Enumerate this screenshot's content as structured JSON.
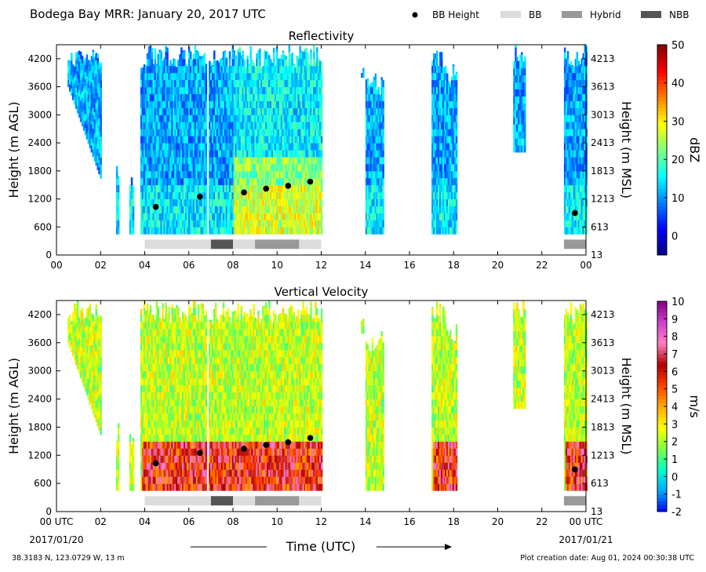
{
  "title": "Bodega Bay MRR:  January 20, 2017 UTC",
  "legend": [
    {
      "label": "BB Height",
      "type": "marker",
      "color": "#000000"
    },
    {
      "label": "BB",
      "type": "patch",
      "color": "#dcdcdc"
    },
    {
      "label": "Hybrid",
      "type": "patch",
      "color": "#999999"
    },
    {
      "label": "NBB",
      "type": "patch",
      "color": "#555555"
    }
  ],
  "footer": {
    "location": "38.3183 N, 123.0729 W, 13 m",
    "created": "Plot creation date: Aug 01, 2024 00:30:38 UTC"
  },
  "xaxis": {
    "label": "Time (UTC)",
    "ticks": [
      "00",
      "02",
      "04",
      "06",
      "08",
      "10",
      "12",
      "14",
      "16",
      "18",
      "20",
      "22",
      "00"
    ],
    "bottom_ticks": [
      "00 UTC",
      "02",
      "04",
      "06",
      "08",
      "10",
      "12",
      "14",
      "16",
      "18",
      "20",
      "22",
      "00 UTC"
    ],
    "start_date": "2017/01/20",
    "end_date": "2017/01/21"
  },
  "chart_data": [
    {
      "type": "heatmap",
      "title": "Reflectivity",
      "ylabel": "Height (m AGL)",
      "ylabel_right": "Height (m MSL)",
      "xlim": [
        0,
        24
      ],
      "ylim": [
        0,
        4500
      ],
      "yticks": [
        0,
        600,
        1200,
        1800,
        2400,
        3000,
        3600,
        4200
      ],
      "yticks_right": [
        "13",
        "613",
        "1213",
        "1813",
        "2413",
        "3013",
        "3613",
        "4213"
      ],
      "colorbar": {
        "label": "dBZ",
        "min": -5,
        "max": 50,
        "ticks": [
          0,
          10,
          20,
          30,
          40,
          50
        ],
        "colors": [
          "#00007f",
          "#0000ff",
          "#007fff",
          "#00ffff",
          "#7fff7f",
          "#ffff00",
          "#ff7f00",
          "#ff0000",
          "#7f0000"
        ]
      },
      "bb_height": {
        "times": [
          4.5,
          6.5,
          8.5,
          9.5,
          10.5,
          11.5,
          23.5
        ],
        "heights": [
          1030,
          1250,
          1340,
          1420,
          1480,
          1570,
          900
        ]
      },
      "bb_type_bars": [
        {
          "start": 4.0,
          "end": 7.0,
          "type": "BB"
        },
        {
          "start": 7.0,
          "end": 8.0,
          "type": "NBB"
        },
        {
          "start": 8.0,
          "end": 9.0,
          "type": "BB"
        },
        {
          "start": 9.0,
          "end": 11.0,
          "type": "Hybrid"
        },
        {
          "start": 11.0,
          "end": 12.0,
          "type": "BB"
        },
        {
          "start": 23.0,
          "end": 24.0,
          "type": "Hybrid"
        }
      ]
    },
    {
      "type": "heatmap",
      "title": "Vertical Velocity",
      "ylabel": "Height (m AGL)",
      "ylabel_right": "Height (m MSL)",
      "xlim": [
        0,
        24
      ],
      "ylim": [
        0,
        4500
      ],
      "yticks": [
        0,
        600,
        1200,
        1800,
        2400,
        3000,
        3600,
        4200
      ],
      "yticks_right": [
        "13",
        "613",
        "1213",
        "1813",
        "2413",
        "3013",
        "3613",
        "4213"
      ],
      "colorbar": {
        "label": "m/s",
        "min": -2,
        "max": 10,
        "ticks": [
          -2,
          -1,
          0,
          1,
          2,
          3,
          4,
          5,
          6,
          7,
          8,
          9,
          10
        ],
        "colors": [
          "#0000ff",
          "#00aaff",
          "#00ffcc",
          "#80ff40",
          "#ffff00",
          "#ffaa00",
          "#ff4000",
          "#b00000",
          "#ff80c0",
          "#d040d0",
          "#800080"
        ]
      },
      "bb_height": {
        "times": [
          4.5,
          6.5,
          8.5,
          9.5,
          10.5,
          11.5,
          23.5
        ],
        "heights": [
          1030,
          1250,
          1340,
          1420,
          1480,
          1570,
          900
        ]
      },
      "bb_type_bars": [
        {
          "start": 4.0,
          "end": 7.0,
          "type": "BB"
        },
        {
          "start": 7.0,
          "end": 8.0,
          "type": "NBB"
        },
        {
          "start": 8.0,
          "end": 9.0,
          "type": "BB"
        },
        {
          "start": 9.0,
          "end": 11.0,
          "type": "Hybrid"
        },
        {
          "start": 11.0,
          "end": 12.0,
          "type": "BB"
        },
        {
          "start": 23.0,
          "end": 24.0,
          "type": "Hybrid"
        }
      ]
    }
  ]
}
